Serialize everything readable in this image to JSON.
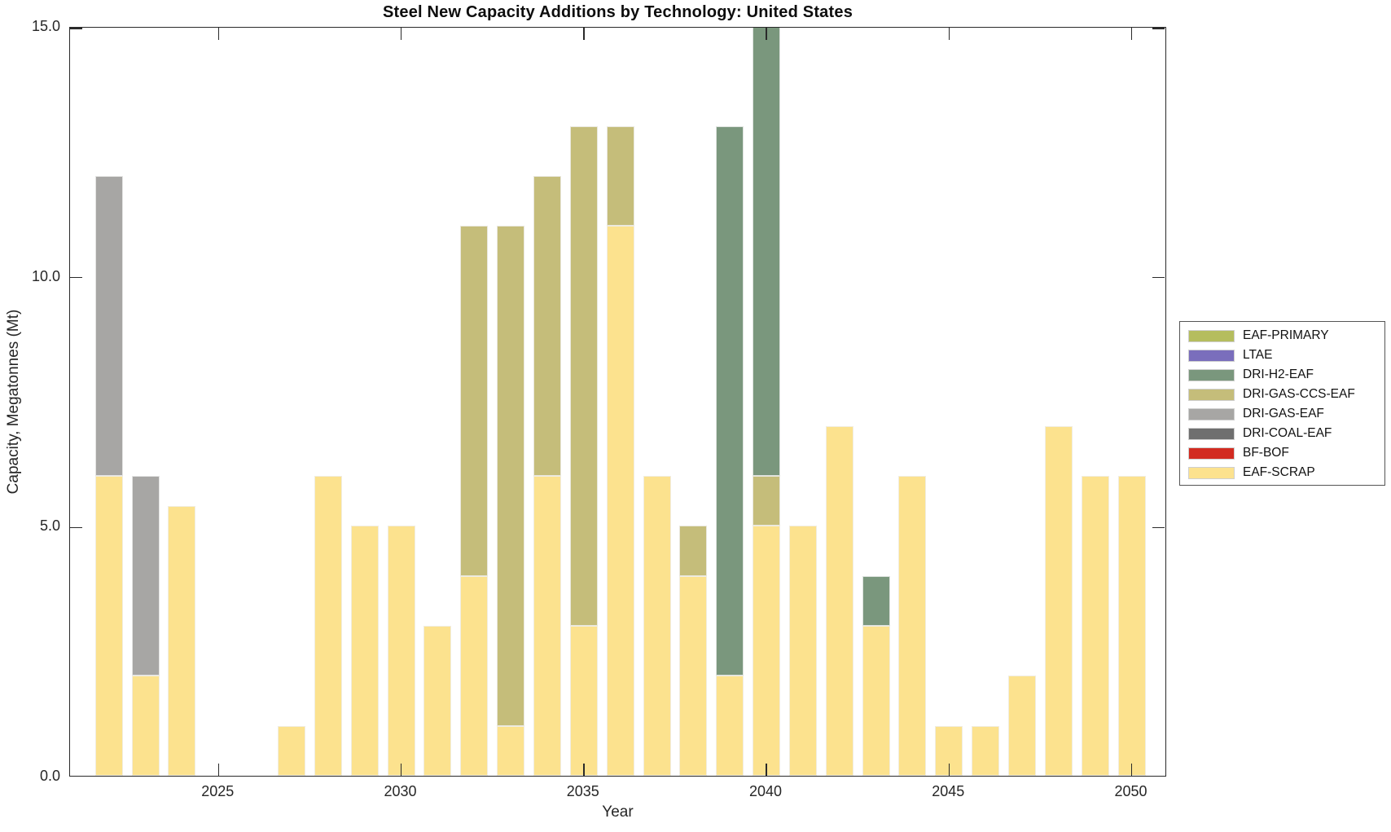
{
  "figure": {
    "title": "Steel New Capacity Additions by Technology: United States"
  },
  "axes": {
    "xlabel": "Year",
    "ylabel": "Capacity, Megatonnes (Mt)"
  },
  "chart_data": {
    "type": "bar",
    "stacked": true,
    "title": "Steel New Capacity Additions by Technology: United States",
    "xlabel": "Year",
    "ylabel": "Capacity, Megatonnes (Mt)",
    "ylim": [
      0,
      15
    ],
    "grid": false,
    "legend_position": "right-outside",
    "ytick_values": [
      0,
      5,
      10,
      15
    ],
    "ytick_labels": [
      "0.0",
      "5.0",
      "10.0",
      "15.0"
    ],
    "xtick_values": [
      2025,
      2030,
      2035,
      2040,
      2045,
      2050
    ],
    "xtick_labels": [
      "2025",
      "2030",
      "2035",
      "2040",
      "2045",
      "2050"
    ],
    "years": [
      2022,
      2023,
      2024,
      2025,
      2026,
      2027,
      2028,
      2029,
      2030,
      2031,
      2032,
      2033,
      2034,
      2035,
      2036,
      2037,
      2038,
      2039,
      2040,
      2041,
      2042,
      2043,
      2044,
      2045,
      2046,
      2047,
      2048,
      2049,
      2050
    ],
    "stack_order_bottom_to_top": [
      "EAF-SCRAP",
      "BF-BOF",
      "DRI-COAL-EAF",
      "DRI-GAS-EAF",
      "DRI-GAS-CCS-EAF",
      "DRI-H2-EAF",
      "LTAE",
      "EAF-PRIMARY"
    ],
    "series": [
      {
        "name": "EAF-PRIMARY",
        "color": "#b5bd5e",
        "values": [
          0,
          0,
          0,
          0,
          0,
          0,
          0,
          0,
          0,
          0,
          0,
          0,
          0,
          0,
          0,
          0,
          0,
          0,
          0,
          0,
          0,
          0,
          0,
          0,
          0,
          0,
          0,
          0,
          0
        ]
      },
      {
        "name": "LTAE",
        "color": "#7a6ebc",
        "values": [
          0,
          0,
          0,
          0,
          0,
          0,
          0,
          0,
          0,
          0,
          0,
          0,
          0,
          0,
          0,
          0,
          0,
          0,
          0,
          0,
          0,
          0,
          0,
          0,
          0,
          0,
          0,
          0,
          0
        ]
      },
      {
        "name": "DRI-H2-EAF",
        "color": "#7a977d",
        "values": [
          0,
          0,
          0,
          0,
          0,
          0,
          0,
          0,
          0,
          0,
          0,
          0,
          0,
          0,
          0,
          0,
          0,
          11,
          9,
          0,
          0,
          1,
          0,
          0,
          0,
          0,
          0,
          0,
          0
        ]
      },
      {
        "name": "DRI-GAS-CCS-EAF",
        "color": "#c5bd7a",
        "values": [
          0,
          0,
          0,
          0,
          0,
          0,
          0,
          0,
          0,
          0,
          7,
          10,
          6,
          10,
          2,
          0,
          1,
          0,
          1,
          0,
          0,
          0,
          0,
          0,
          0,
          0,
          0,
          0,
          0
        ]
      },
      {
        "name": "DRI-GAS-EAF",
        "color": "#a7a6a4",
        "values": [
          6,
          4,
          0,
          0,
          0,
          0,
          0,
          0,
          0,
          0,
          0,
          0,
          0,
          0,
          0,
          0,
          0,
          0,
          0,
          0,
          0,
          0,
          0,
          0,
          0,
          0,
          0,
          0,
          0
        ]
      },
      {
        "name": "DRI-COAL-EAF",
        "color": "#6f6f6f",
        "values": [
          0,
          0,
          0,
          0,
          0,
          0,
          0,
          0,
          0,
          0,
          0,
          0,
          0,
          0,
          0,
          0,
          0,
          0,
          0,
          0,
          0,
          0,
          0,
          0,
          0,
          0,
          0,
          0,
          0
        ]
      },
      {
        "name": "BF-BOF",
        "color": "#d22b21",
        "values": [
          0,
          0,
          0,
          0,
          0,
          0,
          0,
          0,
          0,
          0,
          0,
          0,
          0,
          0,
          0,
          0,
          0,
          0,
          0,
          0,
          0,
          0,
          0,
          0,
          0,
          0,
          0,
          0,
          0
        ]
      },
      {
        "name": "EAF-SCRAP",
        "color": "#fce28e",
        "values": [
          6,
          2,
          5.4,
          0,
          0,
          1,
          6,
          5,
          5,
          3,
          4,
          1,
          6,
          3,
          11,
          6,
          4,
          2,
          5,
          5,
          7,
          3,
          6,
          1,
          1,
          2,
          7,
          6,
          6
        ]
      }
    ],
    "notes": "2040 stacked bar reaches the top of the axis (total 15.0 shown; DRI-H2-EAF segment clipped at ylim)"
  }
}
